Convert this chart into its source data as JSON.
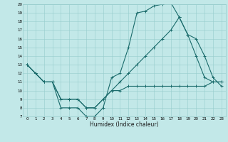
{
  "xlabel": "Humidex (Indice chaleur)",
  "bg_color": "#c2e8e8",
  "grid_color": "#96cccc",
  "line_color": "#1a6b6b",
  "xlim": [
    -0.5,
    23.5
  ],
  "ylim": [
    7,
    20
  ],
  "xticks": [
    0,
    1,
    2,
    3,
    4,
    5,
    6,
    7,
    8,
    9,
    10,
    11,
    12,
    13,
    14,
    15,
    16,
    17,
    18,
    19,
    20,
    21,
    22,
    23
  ],
  "yticks": [
    7,
    8,
    9,
    10,
    11,
    12,
    13,
    14,
    15,
    16,
    17,
    18,
    19,
    20
  ],
  "line1_x": [
    0,
    1,
    2,
    3,
    4,
    5,
    6,
    7,
    8,
    9,
    10,
    11,
    12,
    13,
    14,
    15,
    16,
    17,
    18,
    19,
    20,
    21,
    22,
    23
  ],
  "line1_y": [
    13,
    12,
    11,
    11,
    8,
    8,
    8,
    7,
    7,
    8,
    11.5,
    12,
    15,
    19,
    19.2,
    19.8,
    20,
    20.2,
    18.5,
    16.5,
    14,
    11.5,
    11,
    11
  ],
  "line2_x": [
    0,
    1,
    2,
    3,
    4,
    5,
    6,
    7,
    8,
    9,
    10,
    11,
    12,
    13,
    14,
    15,
    16,
    17,
    18,
    19,
    20,
    21,
    22,
    23
  ],
  "line2_y": [
    13,
    12,
    11,
    11,
    9,
    9,
    9,
    8,
    8,
    9,
    10,
    11,
    12,
    13,
    14,
    15,
    16,
    17,
    18.5,
    16.5,
    16,
    14,
    11.5,
    10.5
  ],
  "line3_x": [
    0,
    1,
    2,
    3,
    4,
    5,
    6,
    7,
    8,
    9,
    10,
    11,
    12,
    13,
    14,
    15,
    16,
    17,
    18,
    19,
    20,
    21,
    22,
    23
  ],
  "line3_y": [
    13,
    12,
    11,
    11,
    9,
    9,
    9,
    8,
    8,
    9,
    10,
    10,
    10.5,
    10.5,
    10.5,
    10.5,
    10.5,
    10.5,
    10.5,
    10.5,
    10.5,
    10.5,
    11,
    11
  ]
}
